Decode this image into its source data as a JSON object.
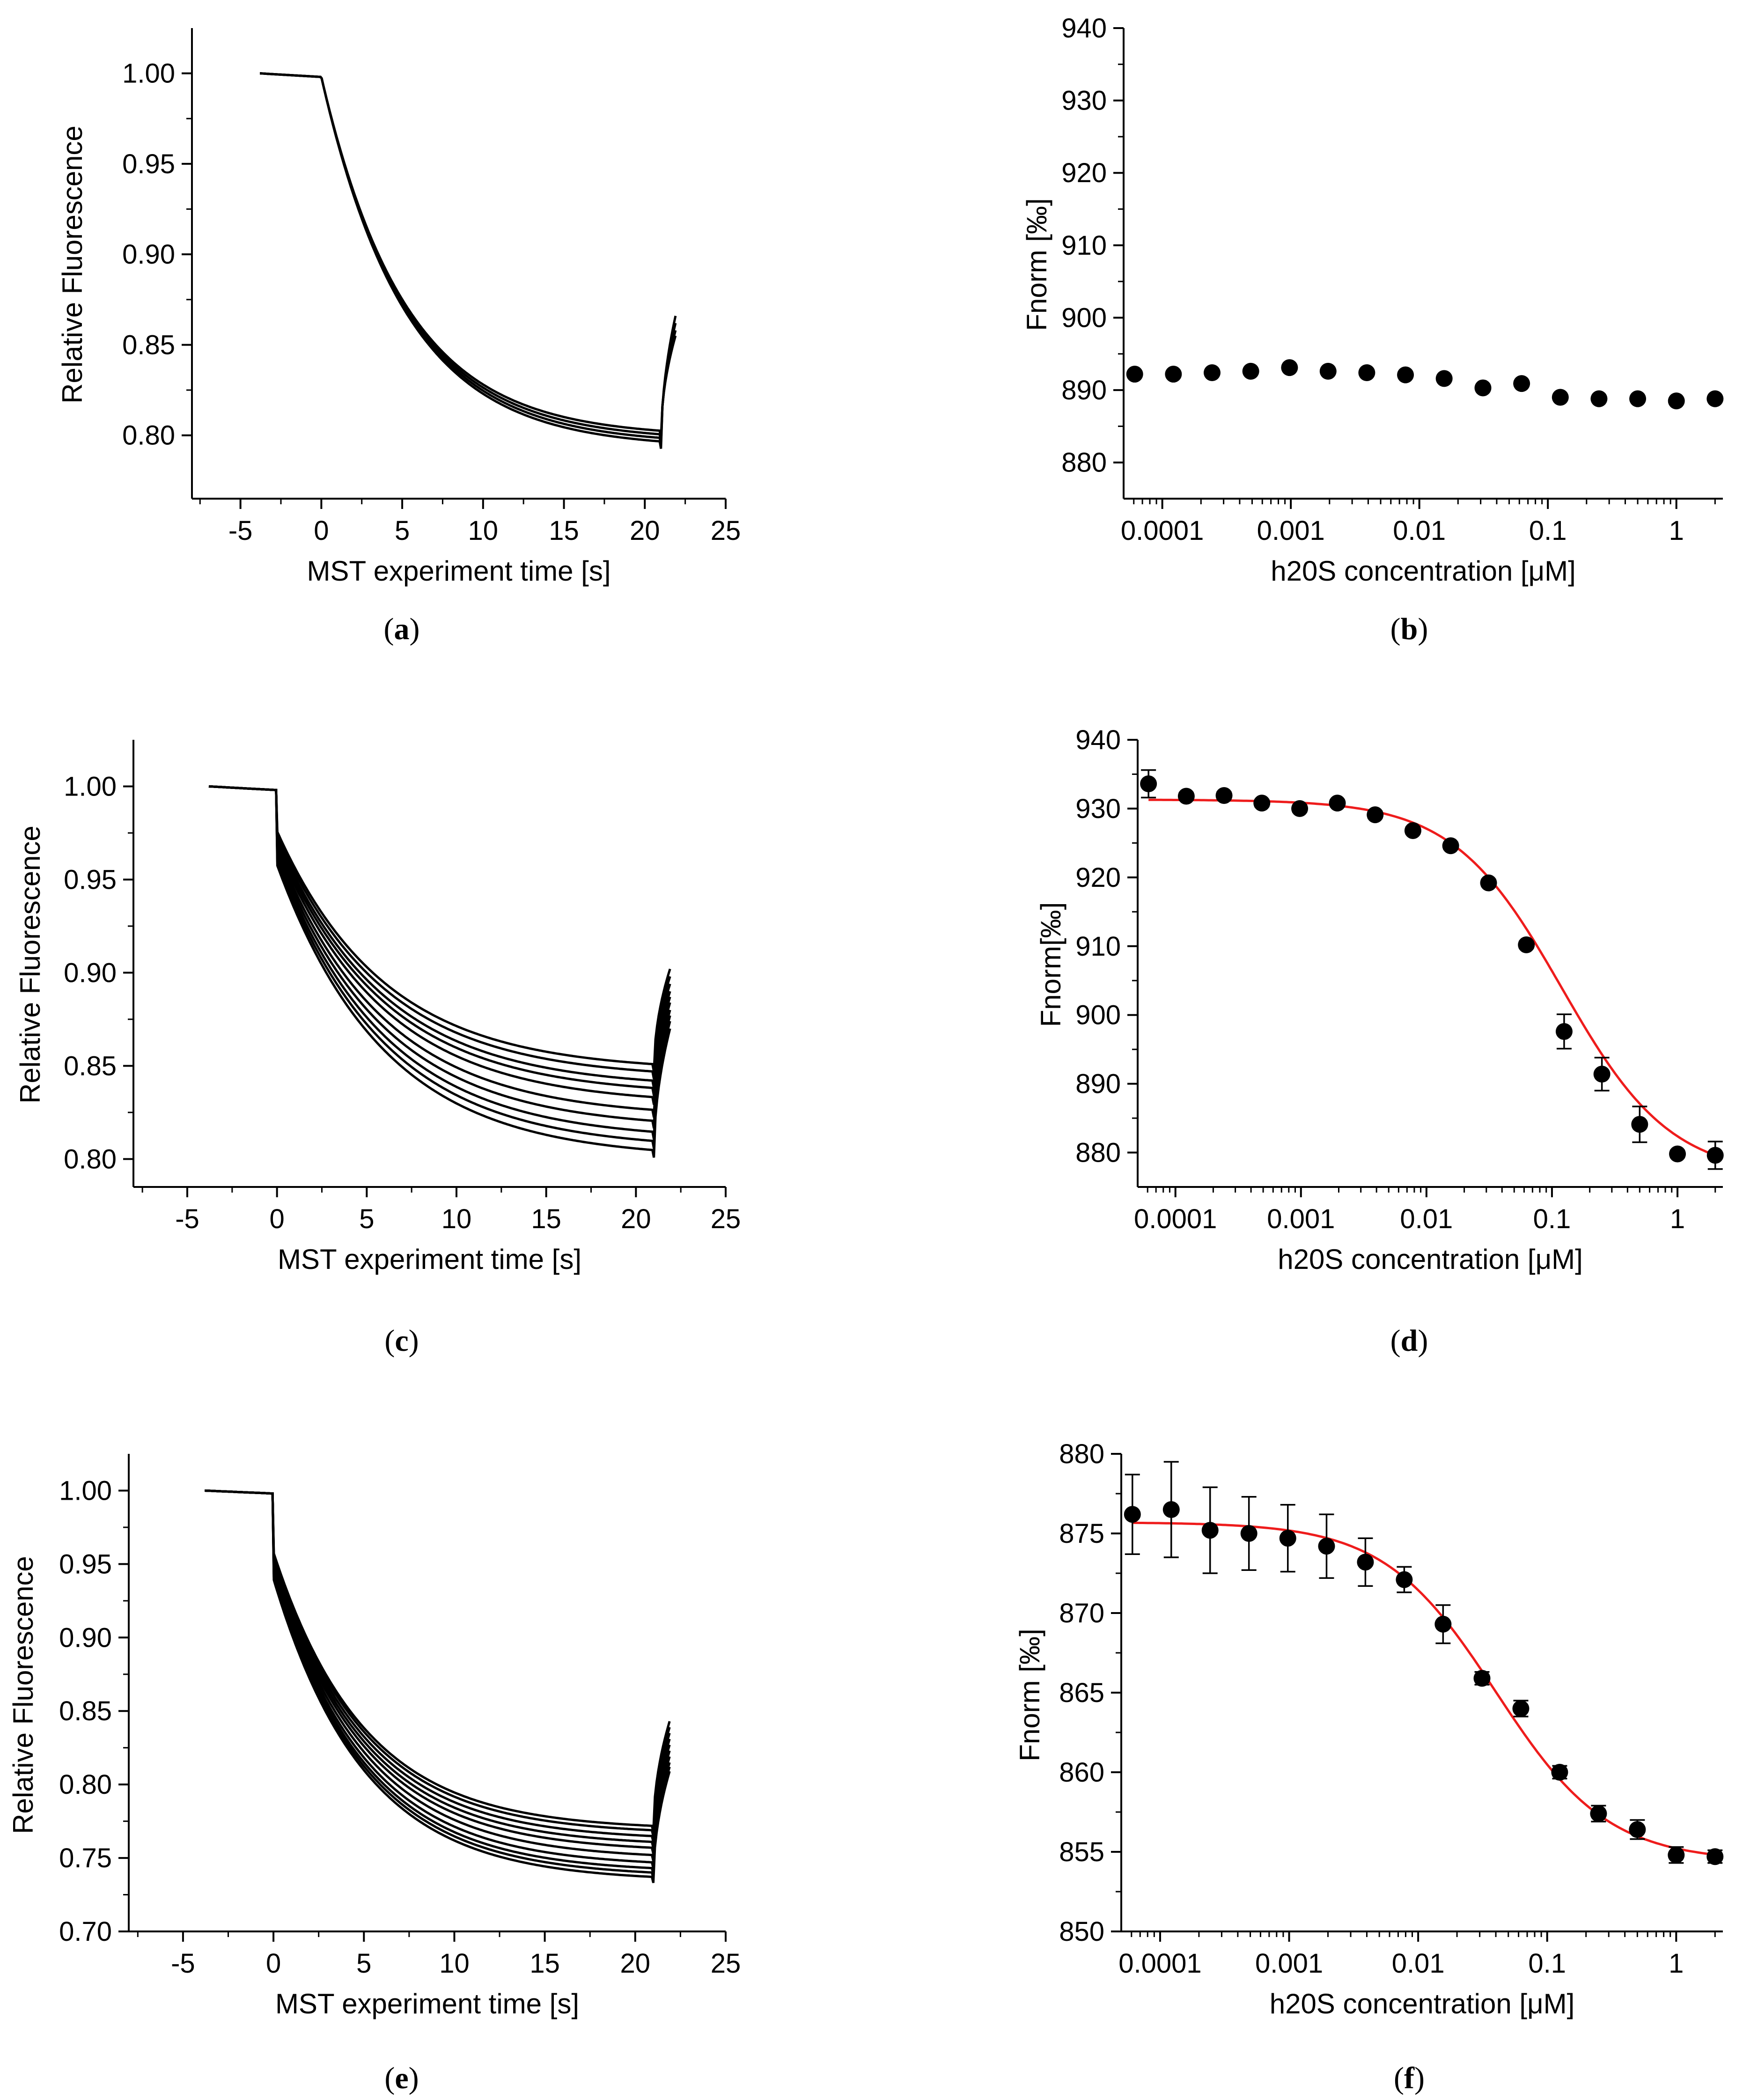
{
  "chart_data": [
    {
      "panel": "a",
      "type": "line",
      "caption_letter": "a",
      "xlabel": "MST experiment time [s]",
      "ylabel": "Relative Fluorescence",
      "xlim": [
        -8,
        25
      ],
      "ylim": [
        0.765,
        1.025
      ],
      "xticks": [
        -5,
        0,
        5,
        10,
        15,
        20,
        25
      ],
      "xtick_labels": [
        "-5",
        "0",
        "5",
        "10",
        "15",
        "20",
        "25"
      ],
      "yticks": [
        0.8,
        0.85,
        0.9,
        0.95,
        1.0
      ],
      "ytick_labels": [
        "0.80",
        "0.85",
        "0.90",
        "0.95",
        "1.00"
      ],
      "trace_model": {
        "t_start": -3.8,
        "pre_value": 1.0,
        "pre_end_value": 0.998,
        "drop_tau": 5.2,
        "heat_off": 21.0,
        "recovery_end": 21.9
      },
      "series": [
        {
          "plateau": 0.793,
          "initial_drop": 0.0,
          "recovery_peak": 0.866
        },
        {
          "plateau": 0.795,
          "initial_drop": 0.0,
          "recovery_peak": 0.862
        },
        {
          "plateau": 0.797,
          "initial_drop": 0.0,
          "recovery_peak": 0.858
        },
        {
          "plateau": 0.799,
          "initial_drop": 0.0,
          "recovery_peak": 0.855
        }
      ]
    },
    {
      "panel": "b",
      "type": "scatter",
      "caption_letter": "b",
      "xlabel": "h20S concentration [μM]",
      "ylabel": "Fnorm [‰]",
      "xscale": "log",
      "xlim": [
        5e-05,
        2.3
      ],
      "ylim": [
        875,
        940
      ],
      "xticks": [
        0.0001,
        0.001,
        0.01,
        0.1,
        1
      ],
      "xtick_labels": [
        "0.0001",
        "0.001",
        "0.01",
        "0.1",
        "1"
      ],
      "yticks": [
        880,
        890,
        900,
        910,
        920,
        930,
        940
      ],
      "ytick_labels": [
        "880",
        "890",
        "900",
        "910",
        "920",
        "930",
        "940"
      ],
      "x": [
        6.1e-05,
        0.000122,
        0.000244,
        0.000488,
        0.000977,
        0.00195,
        0.0039,
        0.0078,
        0.0156,
        0.03125,
        0.0625,
        0.125,
        0.25,
        0.5,
        1.0,
        2.0
      ],
      "y": [
        892.2,
        892.2,
        892.4,
        892.6,
        893.1,
        892.6,
        892.4,
        892.1,
        891.6,
        890.3,
        890.9,
        889.0,
        888.8,
        888.8,
        888.5,
        888.8
      ]
    },
    {
      "panel": "c",
      "type": "line",
      "caption_letter": "c",
      "xlabel": "MST experiment time [s]",
      "ylabel": "Relative Fluorescence",
      "xlim": [
        -8,
        25
      ],
      "ylim": [
        0.785,
        1.025
      ],
      "xticks": [
        -5,
        0,
        5,
        10,
        15,
        20,
        25
      ],
      "xtick_labels": [
        "-5",
        "0",
        "5",
        "10",
        "15",
        "20",
        "25"
      ],
      "yticks": [
        0.8,
        0.85,
        0.9,
        0.95,
        1.0
      ],
      "ytick_labels": [
        "0.80",
        "0.85",
        "0.90",
        "0.95",
        "1.00"
      ],
      "trace_model": {
        "t_start": -3.8,
        "pre_value": 1.0,
        "pre_end_value": 0.998,
        "drop_tau": 6.0,
        "heat_off": 21.0,
        "recovery_end": 21.9
      },
      "series": [
        {
          "plateau": 0.847,
          "initial_drop": 0.022,
          "recovery_peak": 0.902
        },
        {
          "plateau": 0.843,
          "initial_drop": 0.024,
          "recovery_peak": 0.898
        },
        {
          "plateau": 0.838,
          "initial_drop": 0.026,
          "recovery_peak": 0.894
        },
        {
          "plateau": 0.834,
          "initial_drop": 0.028,
          "recovery_peak": 0.89
        },
        {
          "plateau": 0.829,
          "initial_drop": 0.03,
          "recovery_peak": 0.887
        },
        {
          "plateau": 0.822,
          "initial_drop": 0.032,
          "recovery_peak": 0.884
        },
        {
          "plateau": 0.816,
          "initial_drop": 0.034,
          "recovery_peak": 0.88
        },
        {
          "plateau": 0.81,
          "initial_drop": 0.036,
          "recovery_peak": 0.877
        },
        {
          "plateau": 0.805,
          "initial_drop": 0.038,
          "recovery_peak": 0.874
        },
        {
          "plateau": 0.8,
          "initial_drop": 0.04,
          "recovery_peak": 0.87
        }
      ]
    },
    {
      "panel": "d",
      "type": "scatter",
      "caption_letter": "d",
      "xlabel": "h20S concentration [μM]",
      "ylabel": "Fnorm[‰]",
      "xscale": "log",
      "xlim": [
        5e-05,
        2.3
      ],
      "ylim": [
        875,
        940
      ],
      "xticks": [
        0.0001,
        0.001,
        0.01,
        0.1,
        1
      ],
      "xtick_labels": [
        "0.0001",
        "0.001",
        "0.01",
        "0.1",
        "1"
      ],
      "yticks": [
        880,
        890,
        900,
        910,
        920,
        930,
        940
      ],
      "ytick_labels": [
        "880",
        "890",
        "900",
        "910",
        "920",
        "930",
        "940"
      ],
      "x": [
        6.1e-05,
        0.000122,
        0.000244,
        0.000488,
        0.000977,
        0.00195,
        0.0039,
        0.0078,
        0.0156,
        0.03125,
        0.0625,
        0.125,
        0.25,
        0.5,
        1.0,
        2.0
      ],
      "y": [
        933.6,
        931.8,
        931.9,
        930.8,
        930.0,
        930.8,
        929.1,
        926.8,
        924.6,
        919.2,
        910.2,
        897.6,
        891.4,
        884.1,
        879.8,
        879.6
      ],
      "error": [
        2.0,
        0.5,
        0.5,
        0.5,
        0.5,
        0.5,
        0.5,
        0.5,
        0.5,
        0.5,
        0.5,
        2.5,
        2.4,
        2.6,
        0.5,
        2.0
      ],
      "fit": {
        "color": "#ee1c1c",
        "top": 931.3,
        "bottom": 876.5,
        "ec50": 0.12,
        "hill": 1.0
      }
    },
    {
      "panel": "e",
      "type": "line",
      "caption_letter": "e",
      "xlabel": "MST experiment time [s]",
      "ylabel": "Relative Fluorescence",
      "xlim": [
        -8,
        25
      ],
      "ylim": [
        0.7,
        1.025
      ],
      "xticks": [
        -5,
        0,
        5,
        10,
        15,
        20,
        25
      ],
      "xtick_labels": [
        "-5",
        "0",
        "5",
        "10",
        "15",
        "20",
        "25"
      ],
      "yticks": [
        0.7,
        0.75,
        0.8,
        0.85,
        0.9,
        0.95,
        1.0
      ],
      "ytick_labels": [
        "0.70",
        "0.75",
        "0.80",
        "0.85",
        "0.90",
        "0.95",
        "1.00"
      ],
      "trace_model": {
        "t_start": -3.8,
        "pre_value": 1.0,
        "pre_end_value": 0.998,
        "drop_tau": 5.0,
        "heat_off": 21.0,
        "recovery_end": 21.9
      },
      "series": [
        {
          "plateau": 0.769,
          "initial_drop": 0.04,
          "recovery_peak": 0.843
        },
        {
          "plateau": 0.766,
          "initial_drop": 0.042,
          "recovery_peak": 0.839
        },
        {
          "plateau": 0.762,
          "initial_drop": 0.044,
          "recovery_peak": 0.835
        },
        {
          "plateau": 0.758,
          "initial_drop": 0.046,
          "recovery_peak": 0.831
        },
        {
          "plateau": 0.754,
          "initial_drop": 0.048,
          "recovery_peak": 0.827
        },
        {
          "plateau": 0.749,
          "initial_drop": 0.05,
          "recovery_peak": 0.823
        },
        {
          "plateau": 0.744,
          "initial_drop": 0.052,
          "recovery_peak": 0.819
        },
        {
          "plateau": 0.74,
          "initial_drop": 0.054,
          "recovery_peak": 0.815
        },
        {
          "plateau": 0.737,
          "initial_drop": 0.056,
          "recovery_peak": 0.812
        },
        {
          "plateau": 0.734,
          "initial_drop": 0.058,
          "recovery_peak": 0.809
        }
      ]
    },
    {
      "panel": "f",
      "type": "scatter",
      "caption_letter": "f",
      "xlabel": "h20S concentration [μM]",
      "ylabel": "Fnorm [‰]",
      "xscale": "log",
      "xlim": [
        5e-05,
        2.3
      ],
      "ylim": [
        850,
        880
      ],
      "xticks": [
        0.0001,
        0.001,
        0.01,
        0.1,
        1
      ],
      "xtick_labels": [
        "0.0001",
        "0.001",
        "0.01",
        "0.1",
        "1"
      ],
      "yticks": [
        850,
        855,
        860,
        865,
        870,
        875,
        880
      ],
      "ytick_labels": [
        "850",
        "855",
        "860",
        "865",
        "870",
        "875",
        "880"
      ],
      "x": [
        6.1e-05,
        0.000122,
        0.000244,
        0.000488,
        0.000977,
        0.00195,
        0.0039,
        0.0078,
        0.0156,
        0.03125,
        0.0625,
        0.125,
        0.25,
        0.5,
        1.0,
        2.0
      ],
      "y": [
        876.2,
        876.5,
        875.2,
        875.0,
        874.7,
        874.2,
        873.2,
        872.1,
        869.3,
        865.9,
        864.0,
        860.0,
        857.4,
        856.4,
        854.8,
        854.7
      ],
      "error": [
        2.5,
        3.0,
        2.7,
        2.3,
        2.1,
        2.0,
        1.5,
        0.8,
        1.2,
        0.4,
        0.5,
        0.4,
        0.5,
        0.6,
        0.5,
        0.4
      ],
      "fit": {
        "color": "#ee1c1c",
        "top": 875.7,
        "bottom": 854.4,
        "ec50": 0.04,
        "hill": 1.0
      }
    }
  ]
}
